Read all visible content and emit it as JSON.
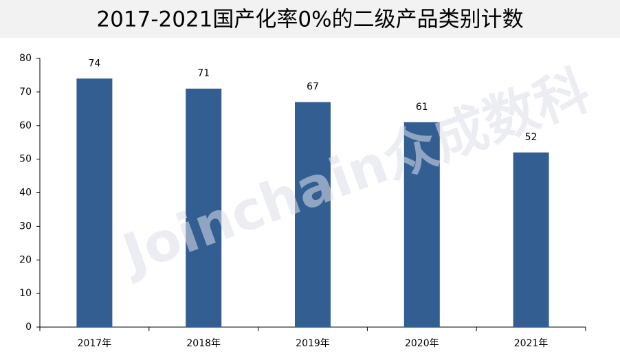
{
  "chart_data": {
    "type": "bar",
    "title": "2017-2021国产化率0%的二级产品类别计数",
    "categories": [
      "2017年",
      "2018年",
      "2019年",
      "2020年",
      "2021年"
    ],
    "values": [
      74,
      71,
      67,
      61,
      52
    ],
    "color": "#335e92",
    "ylim": [
      0,
      80
    ],
    "yticks": [
      0,
      10,
      20,
      30,
      40,
      50,
      60,
      70,
      80
    ],
    "grid": false,
    "watermark": "Joinchain众成数科"
  }
}
